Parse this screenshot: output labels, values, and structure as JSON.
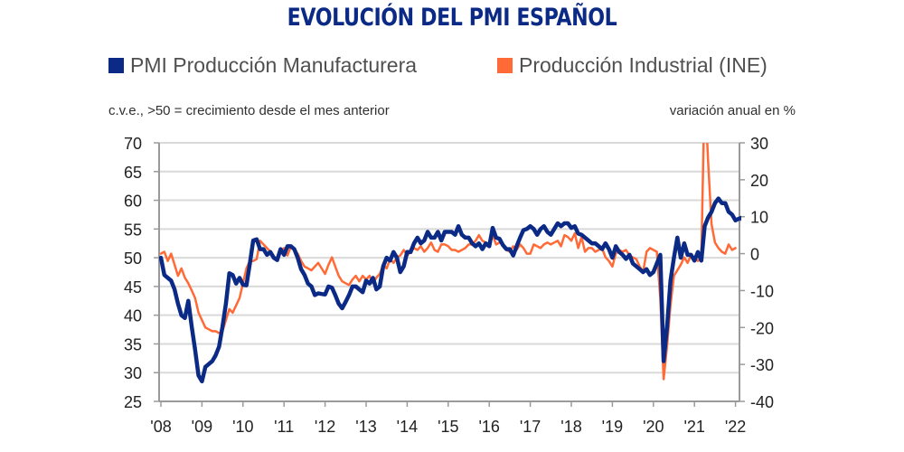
{
  "chart_data": {
    "type": "line",
    "title": "EVOLUCIÓN DEL PMI ESPAÑOL",
    "left_axis_label": "c.v.e., >50 = crecimiento desde el mes anterior",
    "right_axis_label": "variación anual en %",
    "legend_position": "top",
    "grid": true,
    "x_start": "2008-01",
    "x_frequency": "monthly",
    "x_tick_labels": [
      "'08",
      "'09",
      "'10",
      "'11",
      "'12",
      "'13",
      "'14",
      "'15",
      "'16",
      "'17",
      "'18",
      "'19",
      "'20",
      "'21",
      "'22"
    ],
    "y_left": {
      "range": [
        25,
        70
      ],
      "ticks": [
        "70",
        "65",
        "60",
        "55",
        "50",
        "45",
        "40",
        "35",
        "30",
        "25"
      ]
    },
    "y_right": {
      "range": [
        -40,
        30
      ],
      "ticks": [
        "30",
        "20",
        "10",
        "0",
        "-10",
        "-20",
        "-30",
        "-40"
      ]
    },
    "series": [
      {
        "name": "PMI Producción Manufacturera",
        "axis": "left",
        "color": "#0b2a86",
        "values": [
          50,
          47,
          46.5,
          46,
          44.5,
          42,
          40,
          39.5,
          42.5,
          38,
          34,
          29.5,
          28.5,
          31,
          31.5,
          32,
          33,
          34.5,
          38,
          42,
          47.3,
          47,
          45.5,
          46.5,
          45.3,
          45.2,
          49,
          53,
          53.2,
          51.5,
          51.5,
          50.5,
          51,
          50,
          49.6,
          51.5,
          50.5,
          52,
          52,
          51.5,
          50,
          48,
          47,
          45.5,
          45,
          43.5,
          43.8,
          43.7,
          43.6,
          45,
          44.8,
          43.5,
          42,
          41.2,
          42.3,
          43.5,
          45,
          45,
          44.5,
          44,
          46,
          45.5,
          46.5,
          44.5,
          45,
          48.5,
          50,
          49.5,
          51,
          50,
          47.5,
          48.5,
          51,
          51,
          52.5,
          53.5,
          52.5,
          53,
          54.5,
          53.5,
          53.5,
          54.5,
          53,
          54.5,
          54.5,
          54.5,
          54,
          55.5,
          54,
          53.5,
          53.5,
          52.5,
          52,
          52.5,
          51.5,
          52.5,
          52,
          55.2,
          53.5,
          53.3,
          52.2,
          51.5,
          51.5,
          50.4,
          52,
          53.5,
          54.8,
          55,
          55.5,
          55,
          54,
          55,
          55.5,
          54.5,
          54,
          55,
          56,
          55.5,
          56,
          56,
          55.2,
          55.5,
          54.2,
          54,
          53.5,
          53,
          52.5,
          52.5,
          52,
          51.5,
          52.5,
          51.5,
          50,
          52,
          51,
          50.5,
          49.8,
          50.5,
          49,
          48.5,
          48,
          47.5,
          48,
          47,
          47.5,
          49,
          50.5,
          32,
          38,
          46,
          50,
          53.5,
          50,
          52.5,
          50.5,
          50.5,
          49.5,
          51,
          49.5,
          55.5,
          57,
          58,
          59.5,
          60.3,
          59.5,
          59.5,
          58,
          57.5,
          56.5,
          56.8,
          57,
          54.3
        ]
      },
      {
        "name": "Producción Industrial (INE)",
        "axis": "right",
        "color": "#ff6a36",
        "values": [
          0,
          0.5,
          -2,
          0,
          -3,
          -6,
          -4,
          -6.5,
          -8,
          -10,
          -12,
          -16,
          -18,
          -20,
          -20.5,
          -21,
          -21,
          -21.5,
          -21,
          -18,
          -15,
          -16,
          -14,
          -12,
          -8,
          -4,
          -2,
          -2,
          -1.5,
          3.5,
          2.5,
          1.5,
          0.5,
          -1,
          -1.5,
          0.5,
          1.5,
          -0.5,
          2,
          1,
          0,
          -2,
          -3.5,
          -4,
          -4.5,
          -3.5,
          -2.5,
          -4,
          -5.5,
          -3,
          -1,
          -3.5,
          -6,
          -7.5,
          -8,
          -8.5,
          -7,
          -6,
          -7.5,
          -6,
          -7,
          -6,
          -8,
          -6.5,
          -5.5,
          -3,
          -4,
          -1.5,
          -2.5,
          -1,
          -0.5,
          1,
          -0.5,
          0.5,
          1.5,
          1,
          2,
          0.5,
          1.5,
          3,
          1,
          0.5,
          2.5,
          2.5,
          2,
          1,
          1,
          0.5,
          1,
          1.5,
          2.5,
          2.5,
          3.5,
          5,
          3.5,
          3,
          2,
          5,
          2.5,
          3,
          2.5,
          1,
          0.5,
          2,
          1,
          2.5,
          1.5,
          0,
          0,
          2.5,
          2,
          1.5,
          2.5,
          3,
          2.5,
          3,
          3.5,
          2,
          5,
          4.5,
          3.5,
          5.5,
          1.5,
          4.5,
          0.5,
          1.5,
          1.5,
          0.5,
          1,
          1.5,
          -1,
          -2,
          -3.5,
          0,
          1,
          0.5,
          1,
          -0.5,
          -1,
          -1.5,
          -3.5,
          -5,
          0.5,
          1.5,
          1,
          0.5,
          -12,
          -34,
          -25,
          -14,
          -6,
          -4.5,
          -3,
          -1,
          -2.5,
          -0.5,
          -1,
          -2,
          -1,
          45,
          25,
          8,
          3,
          1.5,
          0.5,
          0,
          2.5,
          1,
          1.5
        ]
      }
    ]
  }
}
